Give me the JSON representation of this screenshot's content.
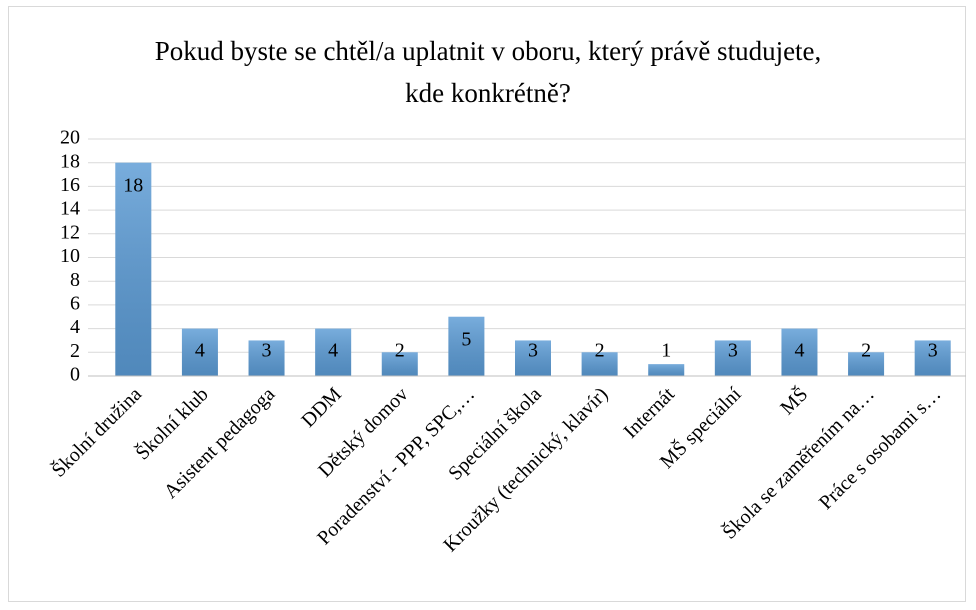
{
  "chart_data": {
    "type": "bar",
    "title": "Pokud byste se chtěl/a uplatnit v oboru, který právě studujete, kde konkrétně?",
    "categories": [
      "Školní družina",
      "Školní klub",
      "Asistent pedagoga",
      "DDM",
      "Dětský domov",
      "Poradenství - PPP, SPC,…",
      "Speciální škola",
      "Kroužky (technický, klavír)",
      "Internát",
      "MŠ speciální",
      "MŠ",
      "Škola se zaměřením na…",
      "Práce s osobami s…"
    ],
    "values": [
      18,
      4,
      3,
      4,
      2,
      5,
      3,
      2,
      1,
      3,
      4,
      2,
      3
    ],
    "color": "#5b9bd5",
    "ylim": [
      0,
      20
    ],
    "yticks": [
      0,
      2,
      4,
      6,
      8,
      10,
      12,
      14,
      16,
      18,
      20
    ],
    "grid": true
  }
}
